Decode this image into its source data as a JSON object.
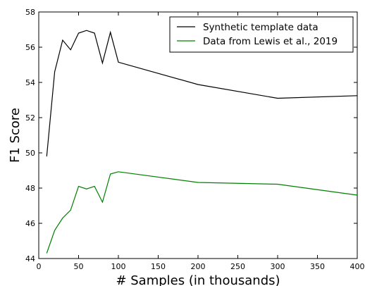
{
  "chart_data": {
    "type": "line",
    "xlabel": "# Samples (in thousands)",
    "ylabel": "F1 Score",
    "xlim": [
      0,
      400
    ],
    "ylim": [
      44,
      58
    ],
    "xticks": [
      0,
      50,
      100,
      150,
      200,
      250,
      300,
      350,
      400
    ],
    "yticks": [
      44,
      46,
      48,
      50,
      52,
      54,
      56,
      58
    ],
    "grid": false,
    "legend_position": "top-right",
    "series": [
      {
        "name": "Synthetic template data",
        "color": "#000000",
        "x": [
          10,
          20,
          30,
          40,
          50,
          60,
          70,
          80,
          90,
          100,
          200,
          300,
          400
        ],
        "y": [
          49.8,
          54.6,
          56.4,
          55.85,
          56.8,
          56.95,
          56.8,
          55.1,
          56.85,
          55.15,
          53.88,
          53.1,
          53.25
        ]
      },
      {
        "name": "Data from Lewis et al., 2019",
        "color": "#008000",
        "x": [
          10,
          20,
          30,
          40,
          50,
          60,
          70,
          80,
          90,
          100,
          200,
          300,
          400
        ],
        "y": [
          44.3,
          45.6,
          46.3,
          46.75,
          48.1,
          47.95,
          48.1,
          47.2,
          48.8,
          48.93,
          48.32,
          48.22,
          47.6
        ]
      }
    ]
  }
}
